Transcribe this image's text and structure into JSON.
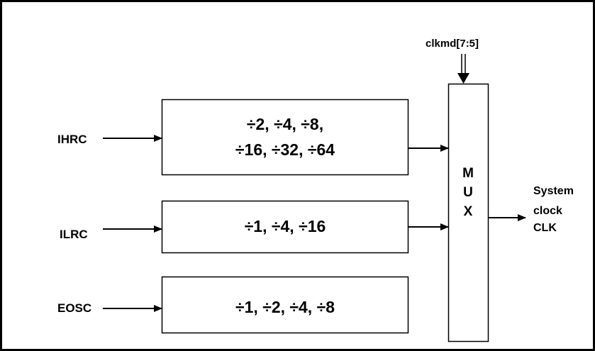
{
  "inputs": {
    "ihrc": "IHRC",
    "ilrc": "ILRC",
    "eosc": "EOSC"
  },
  "dividers": {
    "ihrc_line1": "÷2, ÷4, ÷8,",
    "ihrc_line2": "÷16, ÷32, ÷64",
    "ilrc": "÷1, ÷4, ÷16",
    "eosc": "÷1, ÷2, ÷4, ÷8"
  },
  "mux": {
    "letters": [
      "M",
      "U",
      "X"
    ],
    "select_label": "clkmd[7:5]"
  },
  "output": {
    "line1": "System",
    "line2": "clock",
    "line3": "CLK"
  }
}
